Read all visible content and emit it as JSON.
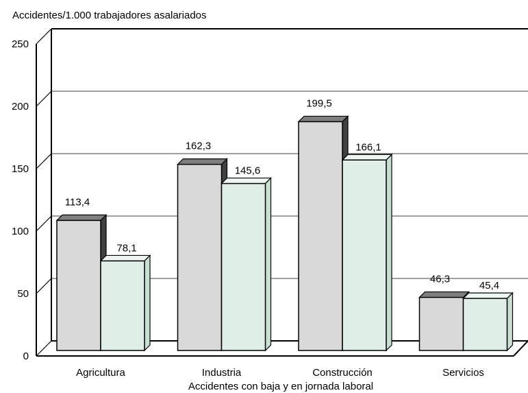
{
  "chart_data": {
    "type": "bar",
    "ylabel": "Accidentes/1.000 trabajadores asalariados",
    "xlabel": "Accidentes con baja y en jornada laboral",
    "categories": [
      "Agricultura",
      "Industria",
      "Construcción",
      "Servicios"
    ],
    "series": [
      {
        "values": [
          113.4,
          162.3,
          199.5,
          46.3
        ],
        "labels": [
          "113,4",
          "162,3",
          "199,5",
          "46,3"
        ],
        "color": "#d9d9d9",
        "side_color": "#404040",
        "top_color": "#7f7f7f"
      },
      {
        "values": [
          78.1,
          145.6,
          166.1,
          45.4
        ],
        "labels": [
          "78,1",
          "145,6",
          "166,1",
          "45,4"
        ],
        "color": "#e0eee8",
        "side_color": "#c8e0d2",
        "top_color": "#eef6f2"
      }
    ],
    "ylim": [
      0,
      250
    ],
    "yticks": [
      "0",
      "50",
      "100",
      "150",
      "200",
      "250"
    ],
    "ytick_values": [
      0,
      50,
      100,
      150,
      200,
      250
    ],
    "grid": true,
    "style": "3d"
  }
}
